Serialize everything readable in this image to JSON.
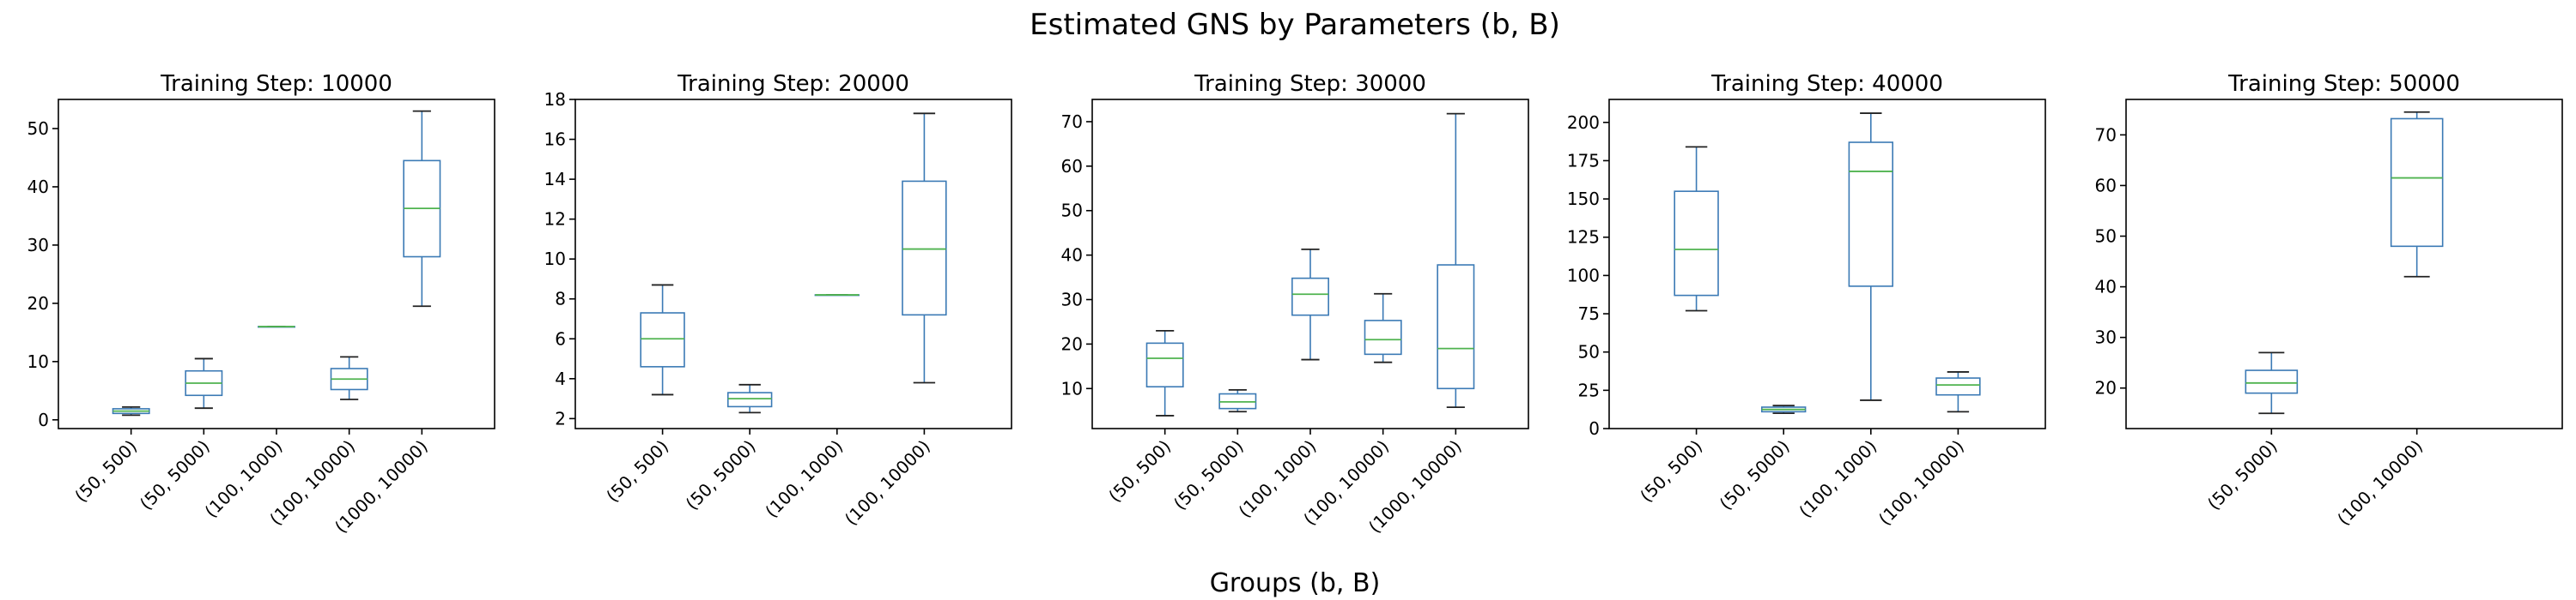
{
  "title": "Estimated GNS by Parameters (b, B)",
  "xlabel": "Groups (b, B)",
  "colors": {
    "box": "#3b7ab5",
    "median": "#4fb34f",
    "cap": "#222222"
  },
  "chart_data": [
    {
      "type": "box",
      "title": "Training Step: 10000",
      "ylim": [
        -1.5,
        55
      ],
      "yticks": [
        0,
        10,
        20,
        30,
        40,
        50
      ],
      "categories": [
        "(50, 500)",
        "(50, 5000)",
        "(100, 1000)",
        "(100, 10000)",
        "(1000, 10000)"
      ],
      "boxes": [
        {
          "whislo": 0.8,
          "q1": 1.1,
          "med": 1.5,
          "q3": 1.9,
          "whishi": 2.2
        },
        {
          "whislo": 2.0,
          "q1": 4.2,
          "med": 6.3,
          "q3": 8.4,
          "whishi": 10.5
        },
        {
          "whislo": 16.0,
          "q1": 16.0,
          "med": 16.0,
          "q3": 16.0,
          "whishi": 16.0
        },
        {
          "whislo": 3.5,
          "q1": 5.2,
          "med": 7.0,
          "q3": 8.8,
          "whishi": 10.8
        },
        {
          "whislo": 19.5,
          "q1": 28.0,
          "med": 36.3,
          "q3": 44.5,
          "whishi": 53.0
        }
      ]
    },
    {
      "type": "box",
      "title": "Training Step: 20000",
      "ylim": [
        1.5,
        18
      ],
      "yticks": [
        2,
        4,
        6,
        8,
        10,
        12,
        14,
        16,
        18
      ],
      "categories": [
        "(50, 500)",
        "(50, 5000)",
        "(100, 1000)",
        "(100, 10000)"
      ],
      "boxes": [
        {
          "whislo": 3.2,
          "q1": 4.6,
          "med": 6.0,
          "q3": 7.3,
          "whishi": 8.7
        },
        {
          "whislo": 2.3,
          "q1": 2.6,
          "med": 3.0,
          "q3": 3.3,
          "whishi": 3.7
        },
        {
          "whislo": 8.2,
          "q1": 8.2,
          "med": 8.2,
          "q3": 8.2,
          "whishi": 8.2
        },
        {
          "whislo": 3.8,
          "q1": 7.2,
          "med": 10.5,
          "q3": 13.9,
          "whishi": 17.3
        }
      ]
    },
    {
      "type": "box",
      "title": "Training Step: 30000",
      "ylim": [
        1,
        75
      ],
      "yticks": [
        10,
        20,
        30,
        40,
        50,
        60,
        70
      ],
      "categories": [
        "(50, 500)",
        "(50, 5000)",
        "(100, 1000)",
        "(100, 10000)",
        "(1000, 10000)"
      ],
      "boxes": [
        {
          "whislo": 3.9,
          "q1": 10.4,
          "med": 16.8,
          "q3": 20.2,
          "whishi": 23.0
        },
        {
          "whislo": 4.8,
          "q1": 5.5,
          "med": 7.0,
          "q3": 8.8,
          "whishi": 9.7
        },
        {
          "whislo": 16.5,
          "q1": 26.5,
          "med": 31.2,
          "q3": 34.8,
          "whishi": 41.3
        },
        {
          "whislo": 15.9,
          "q1": 17.7,
          "med": 21.0,
          "q3": 25.3,
          "whishi": 31.3
        },
        {
          "whislo": 5.8,
          "q1": 10.0,
          "med": 19.0,
          "q3": 37.8,
          "whishi": 71.8
        }
      ]
    },
    {
      "type": "box",
      "title": "Training Step: 40000",
      "ylim": [
        0,
        215
      ],
      "yticks": [
        0,
        25,
        50,
        75,
        100,
        125,
        150,
        175,
        200
      ],
      "categories": [
        "(50, 500)",
        "(50, 5000)",
        "(100, 1000)",
        "(100, 10000)"
      ],
      "boxes": [
        {
          "whislo": 77.0,
          "q1": 87.0,
          "med": 117.0,
          "q3": 155.0,
          "whishi": 184.0
        },
        {
          "whislo": 10.0,
          "q1": 11.0,
          "med": 12.5,
          "q3": 14.0,
          "whishi": 15.0
        },
        {
          "whislo": 18.5,
          "q1": 93.0,
          "med": 168.0,
          "q3": 187.0,
          "whishi": 206.0
        },
        {
          "whislo": 11.0,
          "q1": 22.0,
          "med": 28.5,
          "q3": 33.0,
          "whishi": 37.0
        }
      ]
    },
    {
      "type": "box",
      "title": "Training Step: 50000",
      "ylim": [
        12,
        77
      ],
      "yticks": [
        20,
        30,
        40,
        50,
        60,
        70
      ],
      "categories": [
        "(50, 5000)",
        "(100, 10000)"
      ],
      "boxes": [
        {
          "whislo": 15.0,
          "q1": 19.0,
          "med": 21.0,
          "q3": 23.5,
          "whishi": 27.0
        },
        {
          "whislo": 42.0,
          "q1": 48.0,
          "med": 61.5,
          "q3": 73.2,
          "whishi": 74.5
        }
      ]
    }
  ]
}
